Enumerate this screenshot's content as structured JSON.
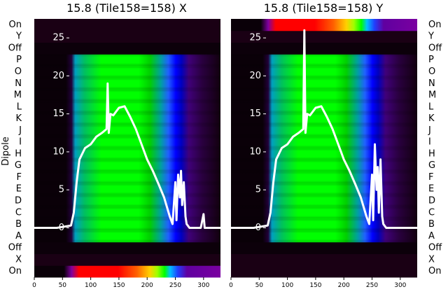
{
  "chart_data": [
    {
      "type": "heatmap",
      "title": "15.8 (Tile158=158) X",
      "ylabel": "Dipole",
      "dipole_labels": [
        "On",
        "X",
        "Off",
        "A",
        "B",
        "C",
        "D",
        "E",
        "F",
        "G",
        "H",
        "I",
        "J",
        "K",
        "L",
        "M",
        "N",
        "O",
        "P",
        "Off",
        "Y",
        "On"
      ],
      "x_ticks": [
        0,
        50,
        100,
        150,
        200,
        250,
        300
      ],
      "xlim": [
        0,
        330
      ],
      "overlay_ticks": [
        0,
        5,
        10,
        15,
        20,
        25
      ],
      "overlay_ylim": [
        -6.5,
        27.5
      ],
      "overlay_series": {
        "name": "",
        "x": [
          0,
          40,
          65,
          70,
          75,
          80,
          90,
          100,
          110,
          120,
          128,
          130,
          132,
          135,
          140,
          150,
          160,
          170,
          180,
          190,
          200,
          210,
          220,
          230,
          240,
          245,
          250,
          252,
          255,
          258,
          260,
          262,
          265,
          268,
          270,
          275,
          280,
          295,
          300,
          302,
          305,
          330
        ],
        "y": [
          0,
          0,
          0.3,
          2,
          6,
          9,
          10.5,
          11,
          12,
          12.5,
          13,
          19,
          12.5,
          15,
          14.8,
          15.8,
          16,
          14.6,
          13,
          11,
          9,
          7.5,
          5.8,
          4,
          1.5,
          0.5,
          6,
          1,
          7,
          4,
          7.5,
          3,
          6,
          1.5,
          0.5,
          0,
          0,
          0,
          1.8,
          0,
          0,
          0
        ]
      },
      "colors": {
        "overlay": "#ffffff"
      }
    },
    {
      "type": "heatmap",
      "title": "15.8 (Tile158=158) Y",
      "ylabel": "",
      "dipole_labels": [
        "On",
        "X",
        "Off",
        "A",
        "B",
        "C",
        "D",
        "E",
        "F",
        "G",
        "H",
        "I",
        "J",
        "K",
        "L",
        "M",
        "N",
        "O",
        "P",
        "Off",
        "Y",
        "On"
      ],
      "x_ticks": [
        0,
        50,
        100,
        150,
        200,
        250,
        300
      ],
      "xlim": [
        0,
        330
      ],
      "overlay_ticks": [
        0,
        5,
        10,
        15,
        20,
        25
      ],
      "overlay_ylim": [
        -6.5,
        27.5
      ],
      "overlay_series": {
        "name": "",
        "x": [
          0,
          40,
          65,
          70,
          75,
          80,
          90,
          100,
          110,
          120,
          128,
          130,
          132,
          135,
          140,
          150,
          160,
          170,
          180,
          190,
          200,
          210,
          220,
          230,
          240,
          245,
          250,
          252,
          255,
          258,
          260,
          262,
          265,
          268,
          270,
          275,
          280,
          330
        ],
        "y": [
          0,
          0,
          0.3,
          2,
          6,
          9,
          10.5,
          11,
          12,
          12.5,
          13,
          26,
          12.5,
          15,
          14.8,
          15.8,
          16,
          14.6,
          13,
          11,
          9,
          7.5,
          5.8,
          4,
          1.5,
          0.5,
          7,
          1,
          11,
          5,
          8,
          2,
          9,
          1.5,
          0.5,
          0,
          0,
          0
        ]
      }
    }
  ]
}
